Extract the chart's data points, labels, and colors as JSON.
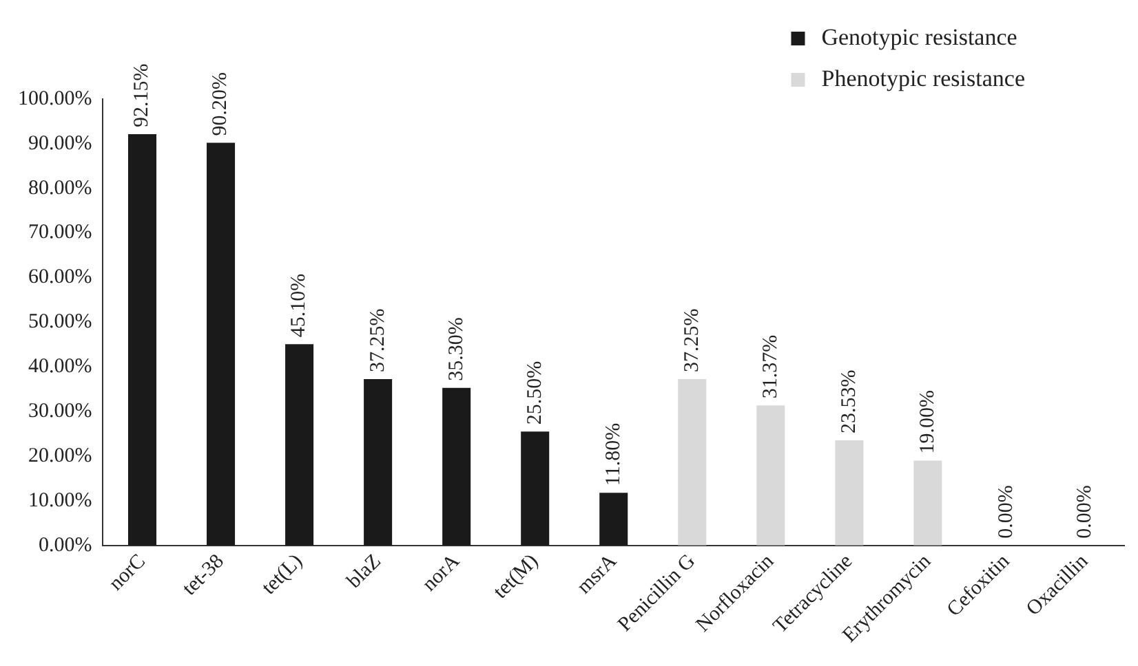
{
  "chart_data": {
    "type": "bar",
    "categories": [
      "norC",
      "tet-38",
      "tet(L)",
      "blaZ",
      "norA",
      "tet(M)",
      "msrA",
      "Penicillin G",
      "Norfloxacin",
      "Tetracycline",
      "Erythromycin",
      "Cefoxitin",
      "Oxacillin"
    ],
    "series": [
      {
        "name": "Genotypic resistance",
        "color": "#1a1a1a",
        "values": [
          92.15,
          90.2,
          45.1,
          37.25,
          35.3,
          25.5,
          11.8,
          null,
          null,
          null,
          null,
          null,
          null
        ],
        "value_labels": [
          "92.15%",
          "90.20%",
          "45.10%",
          "37.25%",
          "35.30%",
          "25.50%",
          "11.80%",
          null,
          null,
          null,
          null,
          null,
          null
        ]
      },
      {
        "name": "Phenotypic resistance",
        "color": "#d9d9d9",
        "values": [
          null,
          null,
          null,
          null,
          null,
          null,
          null,
          37.25,
          31.37,
          23.53,
          19,
          0,
          0
        ],
        "value_labels": [
          null,
          null,
          null,
          null,
          null,
          null,
          null,
          "37.25%",
          "31.37%",
          "23.53%",
          "19.00%",
          "0.00%",
          "0.00%"
        ]
      }
    ],
    "ylim": [
      0,
      100
    ],
    "yticks": [
      {
        "value": 0,
        "label": "0.00%"
      },
      {
        "value": 10,
        "label": "10.00%"
      },
      {
        "value": 20,
        "label": "20.00%"
      },
      {
        "value": 30,
        "label": "30.00%"
      },
      {
        "value": 40,
        "label": "40.00%"
      },
      {
        "value": 50,
        "label": "50.00%"
      },
      {
        "value": 60,
        "label": "60.00%"
      },
      {
        "value": 70,
        "label": "70.00%"
      },
      {
        "value": 80,
        "label": "80.00%"
      },
      {
        "value": 90,
        "label": "90.00%"
      },
      {
        "value": 100,
        "label": "100.00%"
      }
    ],
    "grid": false,
    "legend": "top right"
  }
}
